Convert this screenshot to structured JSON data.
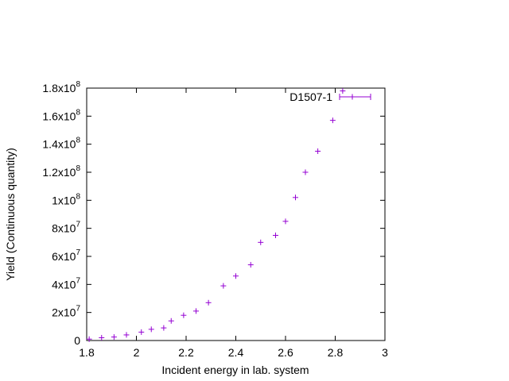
{
  "chart_data": {
    "type": "scatter",
    "xlabel": "Incident energy in lab. system",
    "ylabel": "Yield (Continuous quantity)",
    "xlim": [
      1.8,
      3.0
    ],
    "ylim": [
      0,
      180000000
    ],
    "grid": false,
    "legend_position": "top-right",
    "x_ticks": [
      "1.8",
      "2",
      "2.2",
      "2.4",
      "2.6",
      "2.8",
      "3"
    ],
    "y_ticks": [
      {
        "mantissa": "0",
        "exp": ""
      },
      {
        "mantissa": "2x10",
        "exp": "7"
      },
      {
        "mantissa": "4x10",
        "exp": "7"
      },
      {
        "mantissa": "6x10",
        "exp": "7"
      },
      {
        "mantissa": "8x10",
        "exp": "7"
      },
      {
        "mantissa": "1x10",
        "exp": "8"
      },
      {
        "mantissa": "1.2x10",
        "exp": "8"
      },
      {
        "mantissa": "1.4x10",
        "exp": "8"
      },
      {
        "mantissa": "1.6x10",
        "exp": "8"
      },
      {
        "mantissa": "1.8x10",
        "exp": "8"
      }
    ],
    "series": [
      {
        "name": "D1507-1",
        "color": "#9400d3",
        "x": [
          1.81,
          1.86,
          1.91,
          1.96,
          2.02,
          2.06,
          2.11,
          2.14,
          2.19,
          2.24,
          2.29,
          2.35,
          2.4,
          2.46,
          2.5,
          2.56,
          2.6,
          2.64,
          2.68,
          2.73,
          2.79,
          2.83
        ],
        "y": [
          1000000,
          2000000,
          2500000,
          4000000,
          6000000,
          8000000,
          9000000,
          14000000,
          18000000,
          21000000,
          27000000,
          39000000,
          46000000,
          54000000,
          70000000,
          75000000,
          85000000,
          102000000,
          120000000,
          135000000,
          157000000,
          178000000
        ]
      }
    ]
  }
}
